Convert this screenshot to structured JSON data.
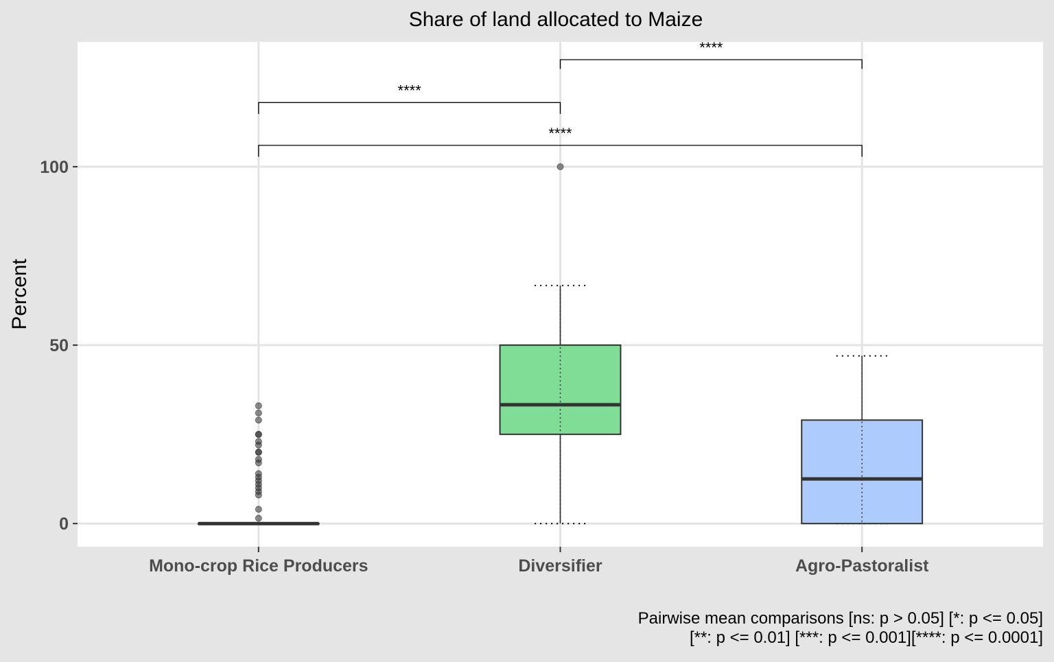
{
  "chart_data": {
    "type": "box",
    "title": "Share of land allocated to Maize",
    "xlabel": "",
    "ylabel": "Percent",
    "ylim": [
      -6.5,
      135
    ],
    "yticks": [
      0,
      50,
      100
    ],
    "grid": true,
    "categories": [
      "Mono-crop Rice Producers",
      "Diversifier",
      "Agro-Pastoralist"
    ],
    "boxes": [
      {
        "category": "Mono-crop Rice Producers",
        "min": 0,
        "q1": 0,
        "median": 0,
        "q3": 0,
        "max": 0,
        "outliers": [
          1.5,
          4,
          8,
          9,
          10,
          11,
          12,
          13,
          14,
          17,
          18,
          20,
          20,
          22,
          23,
          25,
          25,
          29,
          31,
          33
        ],
        "color": "#c5e3f6"
      },
      {
        "category": "Diversifier",
        "min": 0,
        "q1": 25,
        "median": 33.3,
        "q3": 50,
        "max": 66.7,
        "outliers": [
          100
        ],
        "color": "#80dd96"
      },
      {
        "category": "Agro-Pastoralist",
        "min": 0,
        "q1": 0,
        "median": 12.5,
        "q3": 29,
        "max": 47,
        "outliers": [],
        "color": "#adcbfc"
      }
    ],
    "comparisons": [
      {
        "group1": "Mono-crop Rice Producers",
        "group2": "Diversifier",
        "label": "****"
      },
      {
        "group1": "Mono-crop Rice Producers",
        "group2": "Agro-Pastoralist",
        "label": "****"
      },
      {
        "group1": "Diversifier",
        "group2": "Agro-Pastoralist",
        "label": "****"
      }
    ],
    "caption": [
      "Pairwise mean comparisons [ns: p > 0.05] [*: p <= 0.05]",
      "[**: p <= 0.01] [***: p <= 0.001][****: p <= 0.0001]"
    ]
  }
}
